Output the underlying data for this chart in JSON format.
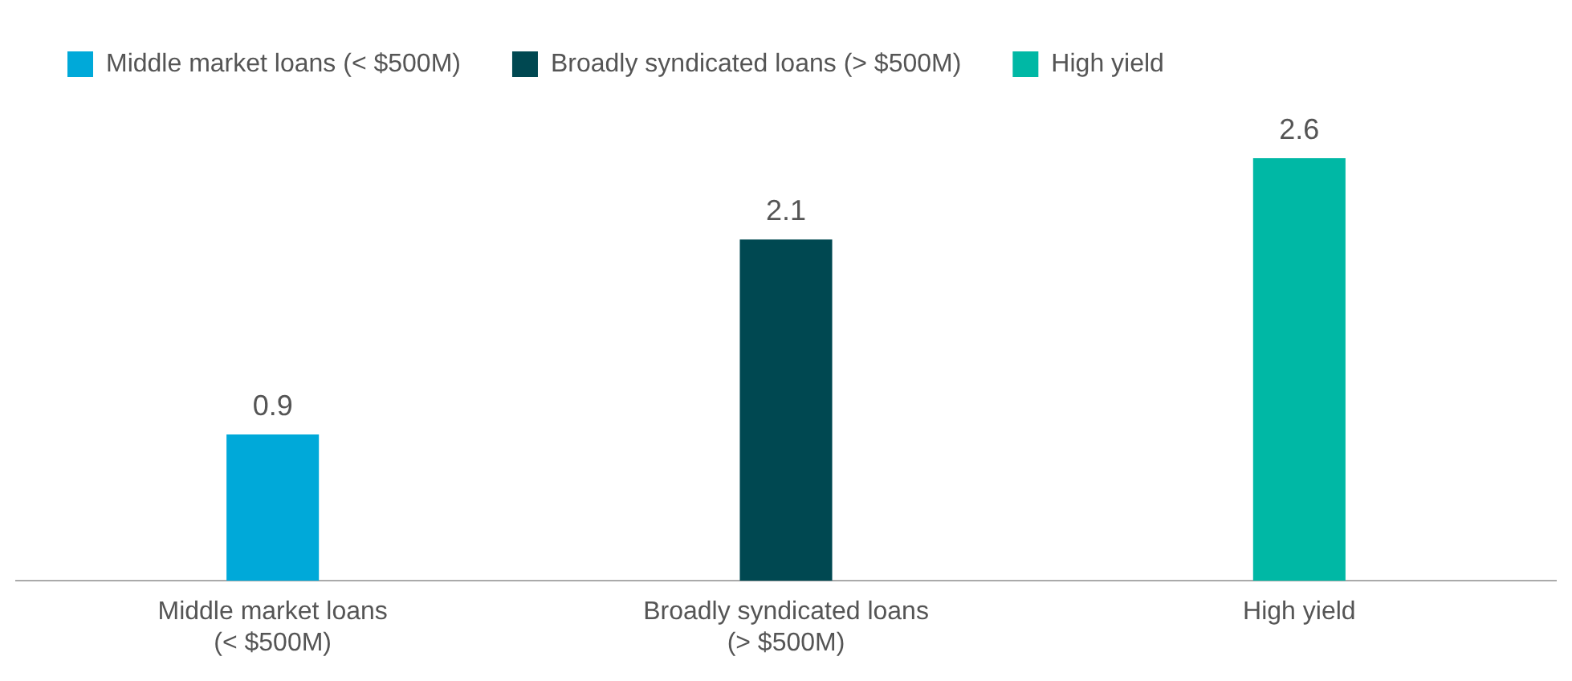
{
  "chart_data": {
    "type": "bar",
    "categories": [
      "Middle market loans\n(< $500M)",
      "Broadly syndicated loans\n(> $500M)",
      "High yield"
    ],
    "series": [
      {
        "name": "Middle market loans (< $500M)",
        "color": "#00a9d9",
        "values": [
          0.9,
          null,
          null
        ]
      },
      {
        "name": "Broadly syndicated loans (> $500M)",
        "color": "#004851",
        "values": [
          null,
          2.1,
          null
        ]
      },
      {
        "name": "High yield",
        "color": "#00b8a5",
        "values": [
          null,
          null,
          2.6
        ]
      }
    ],
    "data_labels": true,
    "legend": "top left",
    "grid": false,
    "tick_labels": "x"
  }
}
